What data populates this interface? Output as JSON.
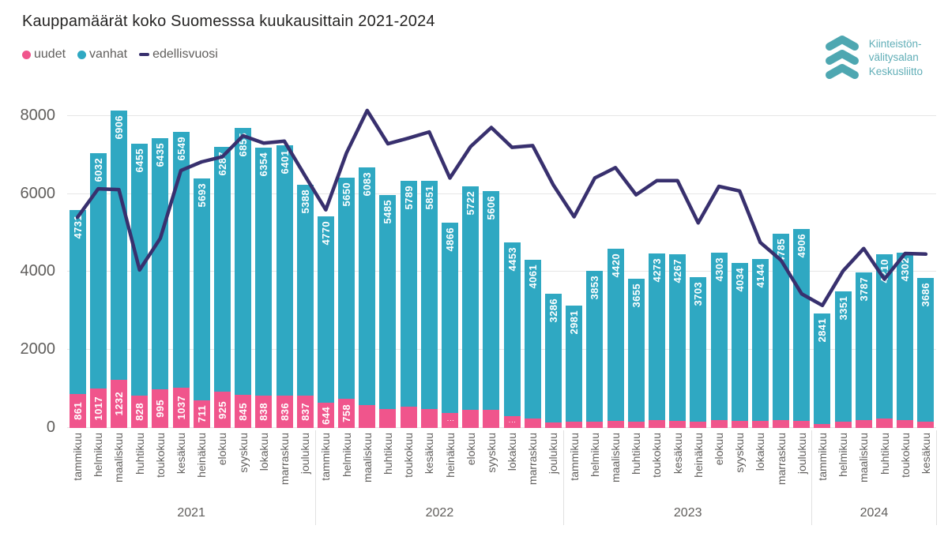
{
  "title": "Kauppamäärät koko Suomesssa kuukausittain 2021-2024",
  "legend": [
    {
      "label": "uudet",
      "marker": "circle",
      "color": "#F0558C"
    },
    {
      "label": "vanhat",
      "marker": "circle",
      "color": "#2FA8C2"
    },
    {
      "label": "edellisvuosi",
      "marker": "dash",
      "color": "#38306E"
    }
  ],
  "logo": {
    "lines": [
      "Kiinteistön-",
      "välitysalan",
      "Keskusliitto"
    ],
    "chevron_color": "#4EA7B1",
    "text_color": "#61AEB7"
  },
  "colors": {
    "uudet": "#F0558C",
    "vanhat": "#2FA8C2",
    "line": "#38306E",
    "title_text": "#252423",
    "axis_text": "#605E5C",
    "gridline": "#E6E6E6",
    "bar_value_text": "#FFFFFF"
  },
  "chart_data": {
    "type": "bar",
    "subtype": "stacked-bars-with-line-overlay",
    "title": "Kauppamäärät koko Suomesssa kuukausittain 2021-2024",
    "xlabel": "",
    "ylabel": "",
    "grid": true,
    "legend_position": "top-left",
    "y_axis": {
      "ticks": [
        0,
        2000,
        4000,
        6000,
        8000
      ],
      "ylim": [
        0,
        8540
      ],
      "plot_max": 8540
    },
    "series_names": [
      "uudet",
      "vanhat",
      "edellisvuosi"
    ],
    "bars": [
      {
        "year": "2021",
        "month": "tammikuu",
        "uudet": 861,
        "uudet_label": "861",
        "vanhat": 4731
      },
      {
        "year": "2021",
        "month": "helmikuu",
        "uudet": 1017,
        "uudet_label": "1017",
        "vanhat": 6032
      },
      {
        "year": "2021",
        "month": "maaliskuu",
        "uudet": 1232,
        "uudet_label": "1232",
        "vanhat": 6906
      },
      {
        "year": "2021",
        "month": "huhtikuu",
        "uudet": 828,
        "uudet_label": "828",
        "vanhat": 6455
      },
      {
        "year": "2021",
        "month": "toukokuu",
        "uudet": 995,
        "uudet_label": "995",
        "vanhat": 6435
      },
      {
        "year": "2021",
        "month": "kesäkuu",
        "uudet": 1037,
        "uudet_label": "1037",
        "vanhat": 6549
      },
      {
        "year": "2021",
        "month": "heinäkuu",
        "uudet": 711,
        "uudet_label": "711",
        "vanhat": 5693
      },
      {
        "year": "2021",
        "month": "elokuu",
        "uudet": 925,
        "uudet_label": "925",
        "vanhat": 6287
      },
      {
        "year": "2021",
        "month": "syyskuu",
        "uudet": 845,
        "uudet_label": "845",
        "vanhat": 6855
      },
      {
        "year": "2021",
        "month": "lokakuu",
        "uudet": 838,
        "uudet_label": "838",
        "vanhat": 6354
      },
      {
        "year": "2021",
        "month": "marraskuu",
        "uudet": 836,
        "uudet_label": "836",
        "vanhat": 6401
      },
      {
        "year": "2021",
        "month": "joulukuu",
        "uudet": 837,
        "uudet_label": "837",
        "vanhat": 5388
      },
      {
        "year": "2022",
        "month": "tammikuu",
        "uudet": 644,
        "uudet_label": "644",
        "vanhat": 4770
      },
      {
        "year": "2022",
        "month": "helmikuu",
        "uudet": 758,
        "uudet_label": "758",
        "vanhat": 5650
      },
      {
        "year": "2022",
        "month": "maaliskuu",
        "uudet": 590,
        "uudet_label": null,
        "vanhat": 6083
      },
      {
        "year": "2022",
        "month": "huhtikuu",
        "uudet": 490,
        "uudet_label": null,
        "vanhat": 5485
      },
      {
        "year": "2022",
        "month": "toukokuu",
        "uudet": 550,
        "uudet_label": null,
        "vanhat": 5789
      },
      {
        "year": "2022",
        "month": "kesäkuu",
        "uudet": 490,
        "uudet_label": null,
        "vanhat": 5851
      },
      {
        "year": "2022",
        "month": "heinäkuu",
        "uudet": 390,
        "uudet_label": "⋮",
        "vanhat": 4866
      },
      {
        "year": "2022",
        "month": "elokuu",
        "uudet": 470,
        "uudet_label": null,
        "vanhat": 5722
      },
      {
        "year": "2022",
        "month": "syyskuu",
        "uudet": 470,
        "uudet_label": null,
        "vanhat": 5606
      },
      {
        "year": "2022",
        "month": "lokakuu",
        "uudet": 300,
        "uudet_label": "⋮",
        "vanhat": 4453
      },
      {
        "year": "2022",
        "month": "marraskuu",
        "uudet": 240,
        "uudet_label": null,
        "vanhat": 4061
      },
      {
        "year": "2022",
        "month": "joulukuu",
        "uudet": 150,
        "uudet_label": null,
        "vanhat": 3286
      },
      {
        "year": "2023",
        "month": "tammikuu",
        "uudet": 160,
        "uudet_label": null,
        "vanhat": 2981
      },
      {
        "year": "2023",
        "month": "helmikuu",
        "uudet": 170,
        "uudet_label": null,
        "vanhat": 3853
      },
      {
        "year": "2023",
        "month": "maaliskuu",
        "uudet": 180,
        "uudet_label": null,
        "vanhat": 4420
      },
      {
        "year": "2023",
        "month": "huhtikuu",
        "uudet": 160,
        "uudet_label": null,
        "vanhat": 3655
      },
      {
        "year": "2023",
        "month": "toukokuu",
        "uudet": 200,
        "uudet_label": null,
        "vanhat": 4273
      },
      {
        "year": "2023",
        "month": "kesäkuu",
        "uudet": 190,
        "uudet_label": null,
        "vanhat": 4267
      },
      {
        "year": "2023",
        "month": "heinäkuu",
        "uudet": 170,
        "uudet_label": null,
        "vanhat": 3703
      },
      {
        "year": "2023",
        "month": "elokuu",
        "uudet": 200,
        "uudet_label": null,
        "vanhat": 4303
      },
      {
        "year": "2023",
        "month": "syyskuu",
        "uudet": 190,
        "uudet_label": null,
        "vanhat": 4034
      },
      {
        "year": "2023",
        "month": "lokakuu",
        "uudet": 190,
        "uudet_label": null,
        "vanhat": 4144
      },
      {
        "year": "2023",
        "month": "marraskuu",
        "uudet": 200,
        "uudet_label": null,
        "vanhat": 4785
      },
      {
        "year": "2023",
        "month": "joulukuu",
        "uudet": 190,
        "uudet_label": null,
        "vanhat": 4906
      },
      {
        "year": "2024",
        "month": "tammikuu",
        "uudet": 100,
        "uudet_label": null,
        "vanhat": 2841
      },
      {
        "year": "2024",
        "month": "helmikuu",
        "uudet": 160,
        "uudet_label": null,
        "vanhat": 3351
      },
      {
        "year": "2024",
        "month": "maaliskuu",
        "uudet": 200,
        "uudet_label": null,
        "vanhat": 3787
      },
      {
        "year": "2024",
        "month": "huhtikuu",
        "uudet": 240,
        "uudet_label": null,
        "vanhat": 4210
      },
      {
        "year": "2024",
        "month": "toukokuu",
        "uudet": 200,
        "uudet_label": null,
        "vanhat": 4302
      },
      {
        "year": "2024",
        "month": "kesäkuu",
        "uudet": 160,
        "uudet_label": null,
        "vanhat": 3686
      }
    ],
    "line": {
      "name": "edellisvuosi",
      "description": "previous-year total for same month (values for 2021 estimated from plot)",
      "values": [
        5400,
        6130,
        6110,
        4050,
        4860,
        6600,
        6820,
        6950,
        7490,
        7300,
        7350,
        6460,
        5592,
        7049,
        8138,
        7283,
        7430,
        7586,
        6404,
        7212,
        7700,
        7192,
        7237,
        6225,
        5414,
        6408,
        6673,
        5975,
        6339,
        6341,
        5256,
        6192,
        6076,
        4753,
        4301,
        3436,
        3141,
        4023,
        4600,
        3815,
        4473,
        4457
      ]
    },
    "year_groups": [
      "2021",
      "2022",
      "2023",
      "2024"
    ]
  }
}
